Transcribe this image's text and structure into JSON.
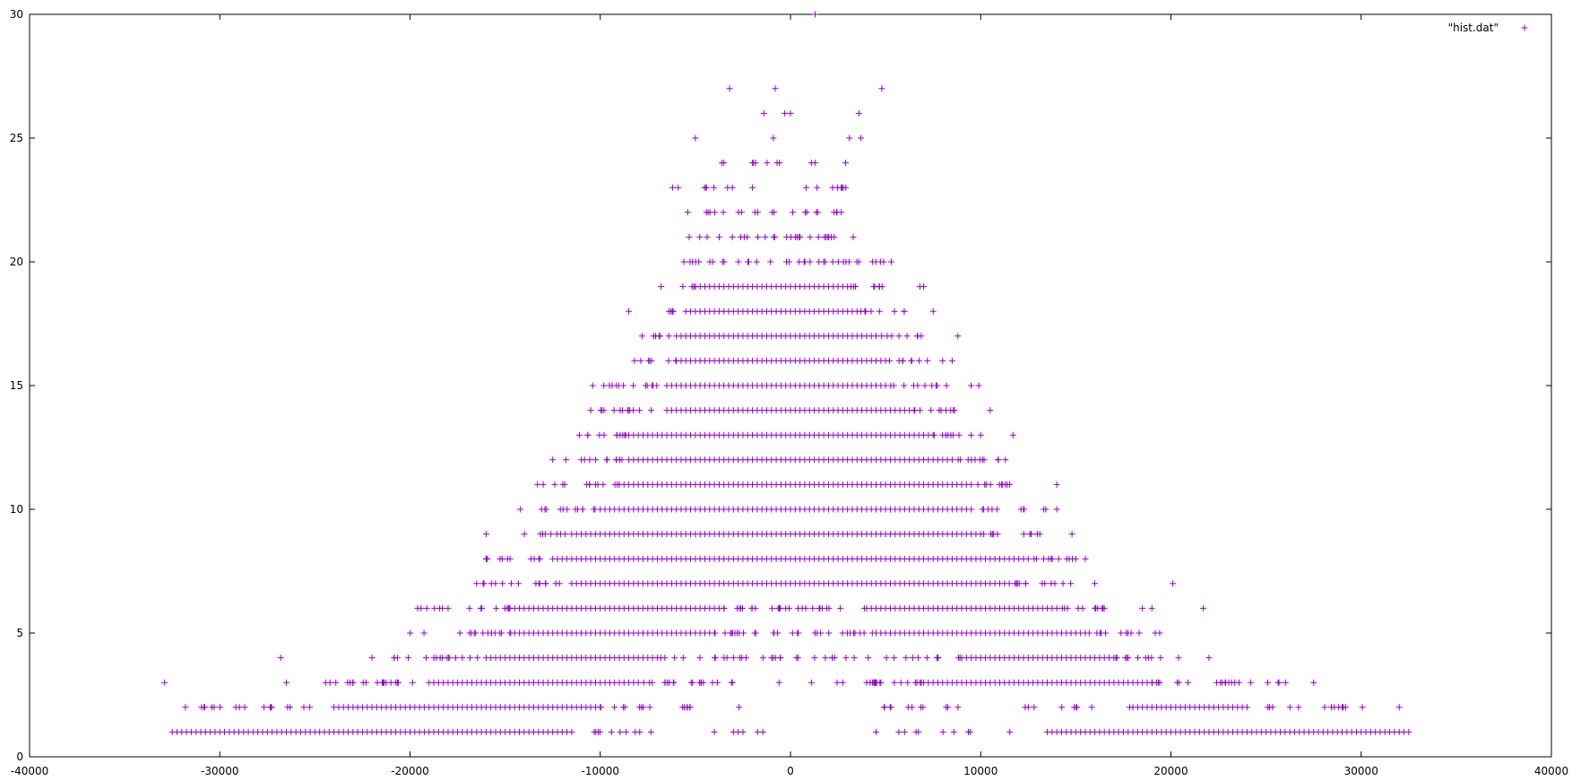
{
  "chart_data": {
    "type": "scatter",
    "title": "",
    "xlabel": "",
    "ylabel": "",
    "xlim": [
      -40000,
      40000
    ],
    "ylim": [
      0,
      30
    ],
    "xticks": [
      "-40000",
      "-30000",
      "-20000",
      "-10000",
      "0",
      "10000",
      "20000",
      "30000",
      "40000"
    ],
    "yticks": [
      "0",
      "5",
      "10",
      "15",
      "20",
      "25",
      "30"
    ],
    "grid": false,
    "legend_position": "top-right",
    "marker": "plus",
    "color": "#9400d3",
    "series": [
      {
        "name": "\"hist.dat\"",
        "rows": [
          {
            "y": 1,
            "dense": [
              [
                -32500,
                -11500
              ],
              [
                -3000,
                -2500
              ],
              [
                13500,
                32500
              ]
            ],
            "sparse": [
              [
                -11500,
                -7000,
                10
              ],
              [
                -3000,
                13500,
                10
              ]
            ],
            "extra": [
              -4000,
              4500,
              6000
            ]
          },
          {
            "y": 2,
            "dense": [
              [
                -24000,
                -10000
              ],
              [
                18000,
                24000
              ]
            ],
            "sparse": [
              [
                -32000,
                -24000,
                18
              ],
              [
                -10000,
                -5000,
                14
              ],
              [
                4800,
                18000,
                20
              ],
              [
                24000,
                30500,
                14
              ]
            ],
            "extra": [
              -2700,
              32000
            ]
          },
          {
            "y": 3,
            "dense": [
              [
                -19000,
                -8000
              ],
              [
                7000,
                19000
              ]
            ],
            "sparse": [
              [
                -25000,
                -19000,
                20
              ],
              [
                -8000,
                -3000,
                20
              ],
              [
                1500,
                7000,
                20
              ],
              [
                19000,
                24000,
                16
              ],
              [
                24000,
                26500,
                5
              ]
            ],
            "extra": [
              -32900,
              -26500,
              -600,
              1100,
              27500
            ]
          },
          {
            "y": 4,
            "dense": [
              [
                -16000,
                -7000
              ],
              [
                9000,
                17000
              ]
            ],
            "sparse": [
              [
                -21000,
                -16000,
                16
              ],
              [
                -7000,
                9000,
                40
              ],
              [
                17000,
                19500,
                10
              ]
            ],
            "extra": [
              -26800,
              -22000,
              20400,
              22000
            ]
          },
          {
            "y": 5,
            "dense": [
              [
                -14500,
                -4000
              ],
              [
                4500,
                15500
              ]
            ],
            "sparse": [
              [
                -20000,
                -14500,
                16
              ],
              [
                -4000,
                4500,
                30
              ],
              [
                15500,
                19500,
                12
              ]
            ],
            "extra": []
          },
          {
            "y": 6,
            "dense": [
              [
                -14500,
                -3500
              ],
              [
                4000,
                14000
              ]
            ],
            "sparse": [
              [
                -19500,
                -14500,
                14
              ],
              [
                -3500,
                4000,
                26
              ],
              [
                14000,
                16500,
                12
              ]
            ],
            "extra": [
              -19600,
              -18000,
              18500,
              19000,
              21700
            ]
          },
          {
            "y": 7,
            "dense": [
              [
                -11500,
                11500
              ]
            ],
            "sparse": [
              [
                -16500,
                -11500,
                14
              ],
              [
                11500,
                15000,
                12
              ]
            ],
            "extra": [
              -16500,
              16000,
              20100
            ]
          },
          {
            "y": 8,
            "dense": [
              [
                -12500,
                12500
              ]
            ],
            "sparse": [
              [
                -16000,
                -12500,
                10
              ],
              [
                12500,
                15000,
                10
              ]
            ],
            "extra": [
              -16000,
              15000,
              15500
            ]
          },
          {
            "y": 9,
            "dense": [
              [
                -11500,
                10000
              ]
            ],
            "sparse": [
              [
                -14000,
                -11500,
                8
              ],
              [
                10000,
                13500,
                10
              ]
            ],
            "extra": [
              -16000,
              14800
            ]
          },
          {
            "y": 10,
            "dense": [
              [
                -10000,
                9500
              ]
            ],
            "sparse": [
              [
                -14000,
                -10000,
                12
              ],
              [
                9500,
                13500,
                10
              ]
            ],
            "extra": [
              -14200,
              14000
            ]
          },
          {
            "y": 11,
            "dense": [
              [
                -9000,
                9500
              ]
            ],
            "sparse": [
              [
                -13000,
                -9000,
                12
              ],
              [
                9500,
                12000,
                10
              ]
            ],
            "extra": [
              -13300,
              14000
            ]
          },
          {
            "y": 12,
            "dense": [
              [
                -8500,
                8500
              ]
            ],
            "sparse": [
              [
                -11000,
                -8500,
                10
              ],
              [
                8500,
                11000,
                10
              ]
            ],
            "extra": [
              -12500,
              -11800,
              11300
            ]
          },
          {
            "y": 13,
            "dense": [
              [
                -8500,
                7500
              ]
            ],
            "sparse": [
              [
                -11000,
                -8500,
                10
              ],
              [
                7500,
                9500,
                8
              ]
            ],
            "extra": [
              -11100,
              10000,
              11700
            ]
          },
          {
            "y": 14,
            "dense": [
              [
                -6500,
                6500
              ]
            ],
            "sparse": [
              [
                -10000,
                -6500,
                12
              ],
              [
                6500,
                9500,
                10
              ]
            ],
            "extra": [
              -10500,
              10500
            ]
          },
          {
            "y": 15,
            "dense": [
              [
                -6500,
                5000
              ]
            ],
            "sparse": [
              [
                -10000,
                -6500,
                12
              ],
              [
                5000,
                8500,
                10
              ]
            ],
            "extra": [
              -10400,
              9500,
              9900
            ]
          },
          {
            "y": 16,
            "dense": [
              [
                -6000,
                5000
              ]
            ],
            "sparse": [
              [
                -8000,
                -6000,
                8
              ],
              [
                5000,
                7500,
                8
              ]
            ],
            "extra": [
              -8200,
              8000,
              8500
            ]
          },
          {
            "y": 17,
            "dense": [
              [
                -6000,
                4500
              ]
            ],
            "sparse": [
              [
                -7500,
                -6000,
                6
              ],
              [
                4500,
                7200,
                8
              ]
            ],
            "extra": [
              -7800,
              8800
            ]
          },
          {
            "y": 18,
            "dense": [
              [
                -5500,
                3500
              ]
            ],
            "sparse": [
              [
                -7000,
                -5500,
                6
              ],
              [
                3500,
                6500,
                8
              ]
            ],
            "extra": [
              -8500,
              7500
            ]
          },
          {
            "y": 19,
            "dense": [
              [
                -4500,
                3000
              ]
            ],
            "sparse": [
              [
                -6000,
                -4500,
                6
              ],
              [
                3000,
                5000,
                8
              ]
            ],
            "extra": [
              -6800,
              6800,
              7000
            ]
          },
          {
            "y": 20,
            "dense": [],
            "sparse": [
              [
                -5500,
                5000,
                34
              ]
            ],
            "extra": [
              -5600,
              5300
            ]
          },
          {
            "y": 21,
            "dense": [],
            "sparse": [
              [
                -5500,
                2500,
                26
              ]
            ],
            "extra": [
              3300
            ]
          },
          {
            "y": 22,
            "dense": [],
            "sparse": [
              [
                -4500,
                3300,
                20
              ]
            ],
            "extra": [
              -5400
            ]
          },
          {
            "y": 23,
            "dense": [],
            "sparse": [
              [
                -4800,
                -3000,
                6
              ],
              [
                0,
                3000,
                8
              ]
            ],
            "extra": [
              -6200,
              -5900,
              -2000
            ]
          },
          {
            "y": 24,
            "dense": [],
            "sparse": [
              [
                -2500,
                -500,
                6
              ]
            ],
            "extra": [
              -3600,
              -3500,
              1100,
              1300,
              2900
            ]
          },
          {
            "y": 25,
            "dense": [],
            "sparse": [],
            "extra": [
              -5000,
              -900,
              3100,
              3700
            ]
          },
          {
            "y": 26,
            "dense": [],
            "sparse": [],
            "extra": [
              -1400,
              -300,
              0,
              3600
            ]
          },
          {
            "y": 27,
            "dense": [],
            "sparse": [],
            "extra": [
              -3200,
              -800,
              4800
            ]
          },
          {
            "y": 30,
            "dense": [],
            "sparse": [],
            "extra": [
              1300
            ]
          }
        ]
      }
    ]
  }
}
